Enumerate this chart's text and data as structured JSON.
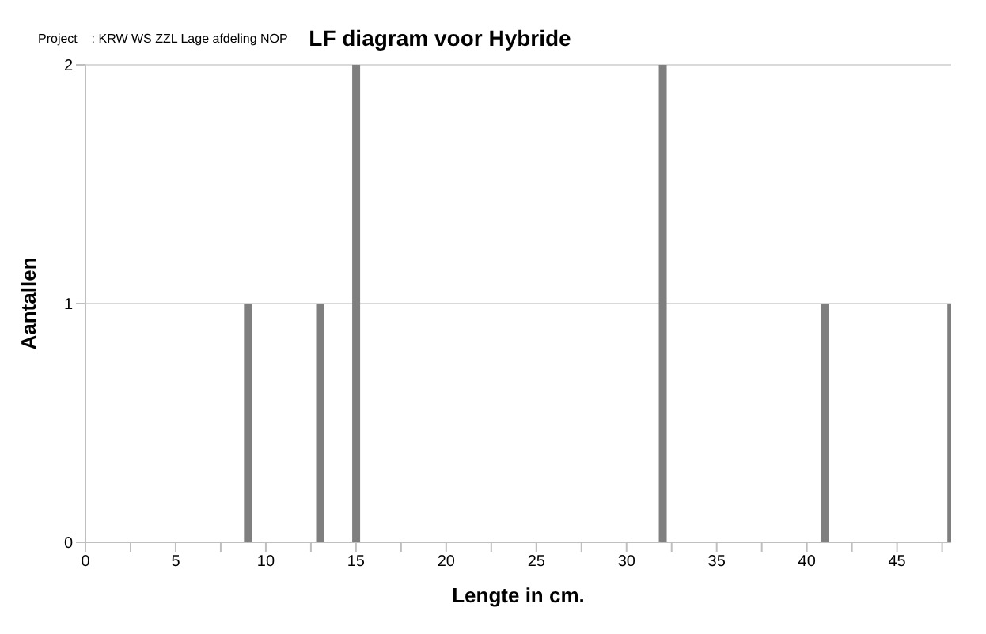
{
  "chart_data": {
    "type": "bar",
    "title": "LF diagram voor Hybride",
    "annotations": [
      "Project    : KRW WS ZZL Lage afdeling NOP"
    ],
    "xlabel": "Lengte in cm.",
    "ylabel": "Aantallen",
    "x": [
      9,
      13,
      15,
      32,
      41,
      48
    ],
    "values": [
      1,
      1,
      2,
      2,
      1,
      1
    ],
    "color": "#7f7f7f",
    "xlim": [
      0,
      48
    ],
    "xticks": [
      0,
      {
        "value": 2.5,
        "label": null
      },
      5,
      {
        "value": 7.5,
        "label": null
      },
      10,
      {
        "value": 12.5,
        "label": null
      },
      15,
      {
        "value": 17.5,
        "label": null
      },
      20,
      {
        "value": 22.5,
        "label": null
      },
      25,
      {
        "value": 27.5,
        "label": null
      },
      30,
      {
        "value": 32.5,
        "label": null
      },
      35,
      {
        "value": 37.5,
        "label": null
      },
      40,
      {
        "value": 42.5,
        "label": null
      },
      45,
      {
        "value": 47.5,
        "label": null
      }
    ],
    "ylim": [
      0,
      2
    ],
    "yticks": [
      0,
      1,
      2
    ],
    "grid": "y"
  }
}
